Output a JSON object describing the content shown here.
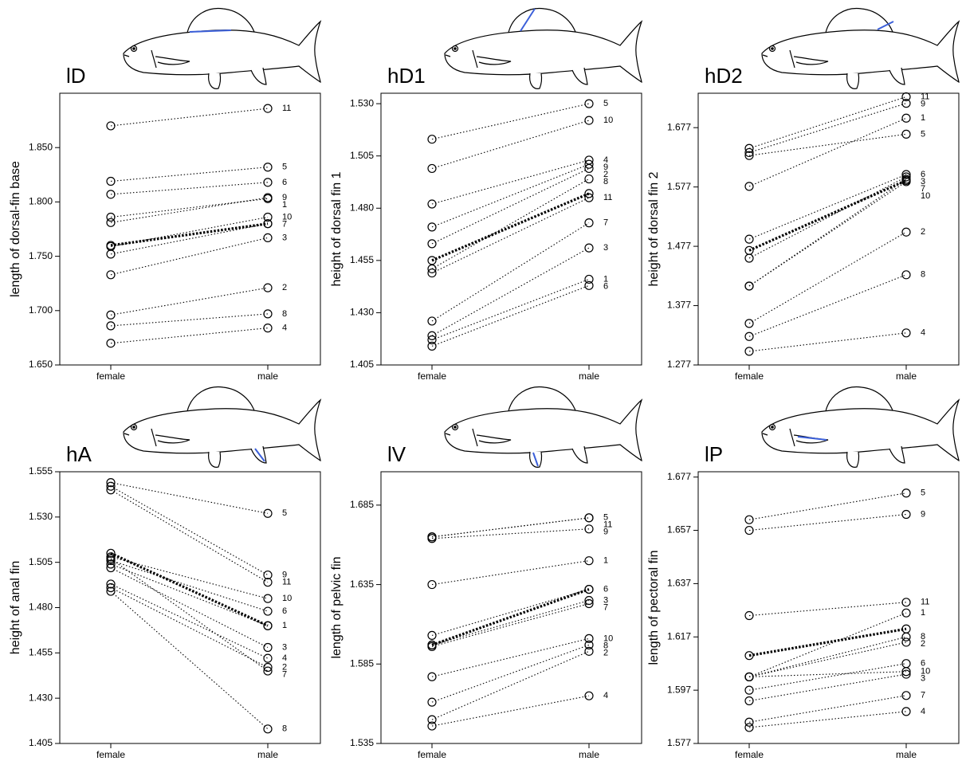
{
  "chart_data": [
    {
      "type": "line",
      "title": "lD",
      "y_label": "length of dorsal-fin base",
      "categories": [
        "female",
        "male"
      ],
      "ylim": [
        1.65,
        1.9
      ],
      "yticks": [
        {
          "value": 1.65,
          "label": "1.650"
        },
        {
          "value": 1.7,
          "label": "1.700"
        },
        {
          "value": 1.75,
          "label": "1.750"
        },
        {
          "value": 1.8,
          "label": "1.800"
        },
        {
          "value": 1.85,
          "label": "1.850"
        }
      ],
      "color": "#000000",
      "series": [
        {
          "name": "1",
          "values": [
            1.786,
            1.803
          ]
        },
        {
          "name": "2",
          "values": [
            1.696,
            1.721
          ]
        },
        {
          "name": "3",
          "values": [
            1.733,
            1.767
          ]
        },
        {
          "name": "4",
          "values": [
            1.67,
            1.684
          ]
        },
        {
          "name": "5",
          "values": [
            1.819,
            1.832
          ]
        },
        {
          "name": "6",
          "values": [
            1.807,
            1.818
          ]
        },
        {
          "name": "7",
          "values": [
            1.752,
            1.78
          ]
        },
        {
          "name": "8",
          "values": [
            1.686,
            1.697
          ]
        },
        {
          "name": "9",
          "values": [
            1.781,
            1.804
          ]
        },
        {
          "name": "10",
          "values": [
            1.759,
            1.786
          ]
        },
        {
          "name": "11",
          "values": [
            1.87,
            1.886
          ]
        }
      ],
      "mean": {
        "values": [
          1.76,
          1.78
        ]
      }
    },
    {
      "type": "line",
      "title": "hD1",
      "y_label": "height of dorsal fin 1",
      "categories": [
        "female",
        "male"
      ],
      "ylim": [
        1.405,
        1.535
      ],
      "yticks": [
        1.405,
        {
          "value": 1.43,
          "label": "1.430"
        },
        1.455,
        {
          "value": 1.48,
          "label": "1.480"
        },
        1.505,
        {
          "value": 1.53,
          "label": "1.530"
        }
      ],
      "color": "#000000",
      "series": [
        {
          "name": "1",
          "values": [
            1.417,
            1.446
          ]
        },
        {
          "name": "2",
          "values": [
            1.463,
            1.499
          ]
        },
        {
          "name": "3",
          "values": [
            1.419,
            1.461
          ]
        },
        {
          "name": "4",
          "values": [
            1.482,
            1.503
          ]
        },
        {
          "name": "5",
          "values": [
            1.513,
            1.53
          ]
        },
        {
          "name": "6",
          "values": [
            1.414,
            1.443
          ]
        },
        {
          "name": "7",
          "values": [
            1.426,
            1.473
          ]
        },
        {
          "name": "8",
          "values": [
            1.451,
            1.494
          ]
        },
        {
          "name": "9",
          "values": [
            1.471,
            1.501
          ]
        },
        {
          "name": "10",
          "values": [
            1.499,
            1.522
          ]
        },
        {
          "name": "11",
          "values": [
            1.449,
            1.485
          ]
        }
      ],
      "mean": {
        "values": [
          1.455,
          1.487
        ]
      }
    },
    {
      "type": "line",
      "title": "hD2",
      "y_label": "height of dorsal fin 2",
      "categories": [
        "female",
        "male"
      ],
      "ylim": [
        1.277,
        1.735
      ],
      "yticks": [
        1.277,
        1.377,
        1.477,
        1.577,
        1.677
      ],
      "color": "#000000",
      "series": [
        {
          "name": "1",
          "values": [
            1.578,
            1.693
          ]
        },
        {
          "name": "2",
          "values": [
            1.347,
            1.501
          ]
        },
        {
          "name": "3",
          "values": [
            1.457,
            1.594
          ]
        },
        {
          "name": "4",
          "values": [
            1.3,
            1.331
          ]
        },
        {
          "name": "5",
          "values": [
            1.63,
            1.666
          ]
        },
        {
          "name": "6",
          "values": [
            1.489,
            1.598
          ]
        },
        {
          "name": "7",
          "values": [
            1.41,
            1.59
          ]
        },
        {
          "name": "8",
          "values": [
            1.325,
            1.429
          ]
        },
        {
          "name": "9",
          "values": [
            1.635,
            1.718
          ]
        },
        {
          "name": "10",
          "values": [
            1.41,
            1.586
          ]
        },
        {
          "name": "11",
          "values": [
            1.642,
            1.729
          ]
        }
      ],
      "mean": {
        "values": [
          1.47,
          1.588
        ]
      }
    },
    {
      "type": "line",
      "title": "hA",
      "y_label": "height of anal fin",
      "categories": [
        "female",
        "male"
      ],
      "ylim": [
        1.405,
        1.555
      ],
      "yticks": [
        1.405,
        {
          "value": 1.43,
          "label": "1.430"
        },
        1.455,
        {
          "value": 1.48,
          "label": "1.480"
        },
        1.505,
        {
          "value": 1.53,
          "label": "1.530"
        },
        1.555
      ],
      "color": "#000000",
      "series": [
        {
          "name": "1",
          "values": [
            1.504,
            1.47
          ]
        },
        {
          "name": "2",
          "values": [
            1.491,
            1.447
          ]
        },
        {
          "name": "3",
          "values": [
            1.502,
            1.458
          ]
        },
        {
          "name": "4",
          "values": [
            1.493,
            1.452
          ]
        },
        {
          "name": "5",
          "values": [
            1.549,
            1.532
          ]
        },
        {
          "name": "6",
          "values": [
            1.506,
            1.478
          ]
        },
        {
          "name": "7",
          "values": [
            1.507,
            1.445
          ]
        },
        {
          "name": "8",
          "values": [
            1.489,
            1.413
          ]
        },
        {
          "name": "9",
          "values": [
            1.547,
            1.498
          ]
        },
        {
          "name": "10",
          "values": [
            1.508,
            1.485
          ]
        },
        {
          "name": "11",
          "values": [
            1.545,
            1.494
          ]
        }
      ],
      "mean": {
        "values": [
          1.51,
          1.47
        ]
      }
    },
    {
      "type": "line",
      "title": "lV",
      "y_label": "length of pelvic fin",
      "categories": [
        "female",
        "male"
      ],
      "ylim": [
        1.535,
        1.706
      ],
      "yticks": [
        1.535,
        1.585,
        1.635,
        1.685
      ],
      "color": "#000000",
      "series": [
        {
          "name": "1",
          "values": [
            1.635,
            1.65
          ]
        },
        {
          "name": "2",
          "values": [
            1.55,
            1.593
          ]
        },
        {
          "name": "3",
          "values": [
            1.597,
            1.625
          ]
        },
        {
          "name": "4",
          "values": [
            1.546,
            1.565
          ]
        },
        {
          "name": "5",
          "values": [
            1.665,
            1.677
          ]
        },
        {
          "name": "6",
          "values": [
            1.603,
            1.632
          ]
        },
        {
          "name": "7",
          "values": [
            1.596,
            1.623
          ]
        },
        {
          "name": "8",
          "values": [
            1.561,
            1.597
          ]
        },
        {
          "name": "9",
          "values": [
            1.664,
            1.67
          ]
        },
        {
          "name": "10",
          "values": [
            1.577,
            1.601
          ]
        },
        {
          "name": "11",
          "values": [
            1.665,
            1.677
          ]
        }
      ],
      "mean": {
        "values": [
          1.597,
          1.632
        ]
      }
    },
    {
      "type": "line",
      "title": "lP",
      "y_label": "length of pectoral fin",
      "categories": [
        "female",
        "male"
      ],
      "ylim": [
        1.577,
        1.679
      ],
      "yticks": [
        1.577,
        1.597,
        1.617,
        1.637,
        1.657,
        1.677
      ],
      "color": "#000000",
      "series": [
        {
          "name": "1",
          "values": [
            1.602,
            1.626
          ]
        },
        {
          "name": "2",
          "values": [
            1.602,
            1.615
          ]
        },
        {
          "name": "3",
          "values": [
            1.593,
            1.603
          ]
        },
        {
          "name": "4",
          "values": [
            1.583,
            1.589
          ]
        },
        {
          "name": "5",
          "values": [
            1.661,
            1.671
          ]
        },
        {
          "name": "6",
          "values": [
            1.597,
            1.607
          ]
        },
        {
          "name": "7",
          "values": [
            1.585,
            1.595
          ]
        },
        {
          "name": "8",
          "values": [
            1.602,
            1.617
          ]
        },
        {
          "name": "9",
          "values": [
            1.657,
            1.663
          ]
        },
        {
          "name": "10",
          "values": [
            1.602,
            1.604
          ]
        },
        {
          "name": "11",
          "values": [
            1.625,
            1.63
          ]
        }
      ],
      "mean": {
        "values": [
          1.61,
          1.62
        ]
      }
    }
  ]
}
